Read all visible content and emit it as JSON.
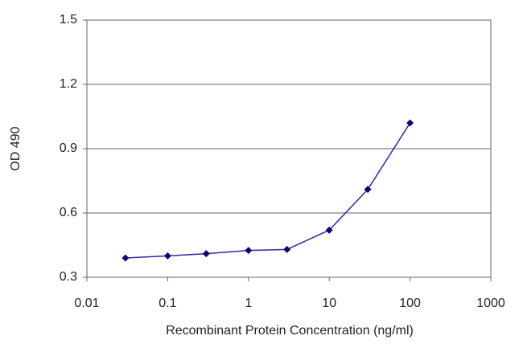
{
  "chart_data": {
    "type": "line",
    "xlabel": "Recombinant Protein Concentration (ng/ml)",
    "ylabel": "OD 490",
    "x": [
      0.03,
      0.1,
      0.3,
      1,
      3,
      10,
      30,
      100
    ],
    "values": [
      0.39,
      0.4,
      0.41,
      0.425,
      0.43,
      0.52,
      0.71,
      1.02
    ],
    "color": "#2a2aa0",
    "marker_color": "#0a0a6e",
    "xscale": "log",
    "xlim": [
      0.01,
      1000
    ],
    "xticks": [
      0.01,
      0.1,
      1,
      10,
      100,
      1000
    ],
    "ylim": [
      0.3,
      1.5
    ],
    "yticks": [
      0.3,
      0.6,
      0.9,
      1.2,
      1.5
    ],
    "grid": true
  }
}
